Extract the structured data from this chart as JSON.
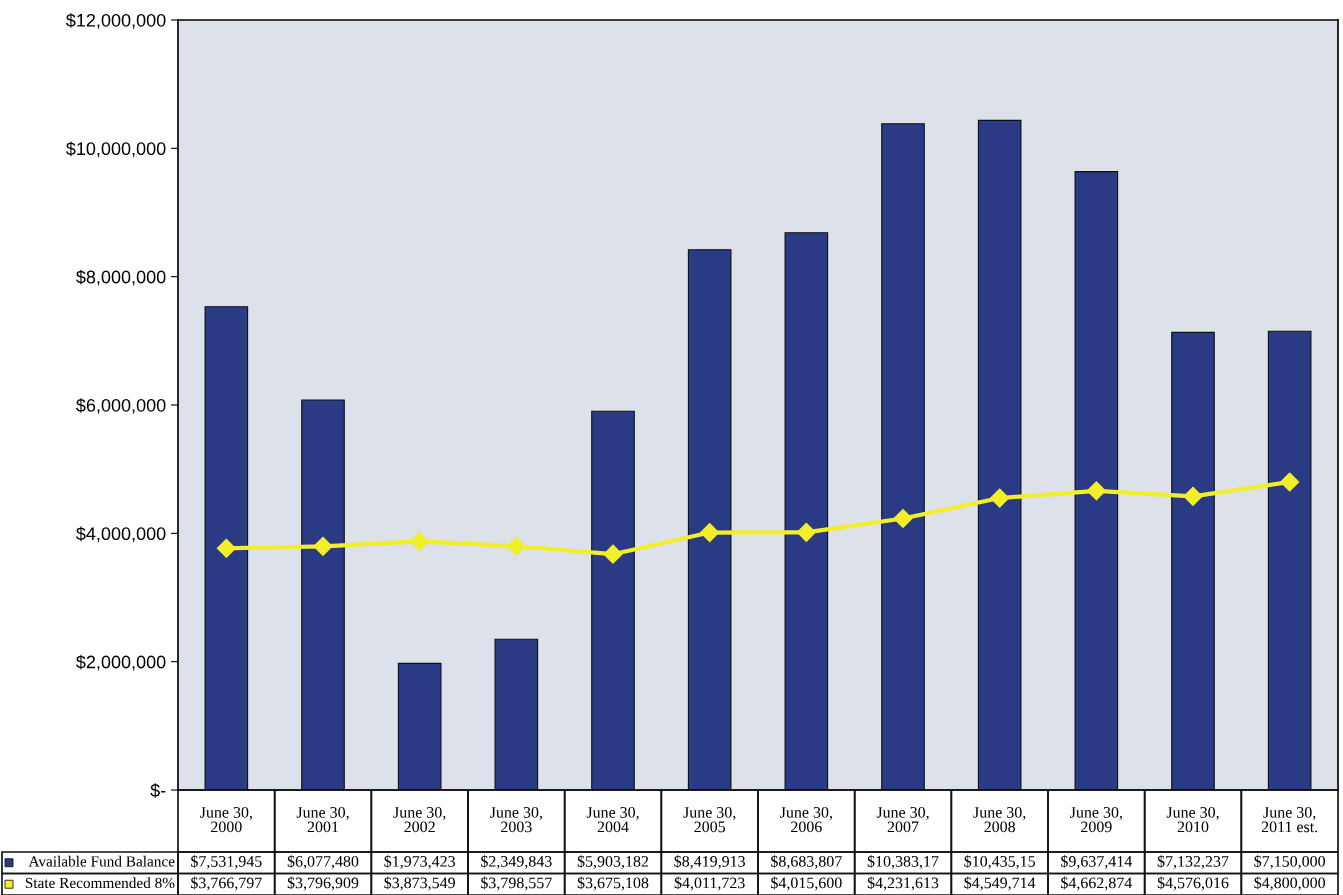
{
  "chart_data": {
    "type": "bar",
    "categories": [
      "June 30,\n2000",
      "June 30,\n2001",
      "June 30,\n2002",
      "June 30,\n2003",
      "June 30,\n2004",
      "June 30,\n2005",
      "June 30,\n2006",
      "June 30,\n2007",
      "June 30,\n2008",
      "June 30,\n2009",
      "June 30,\n2010",
      "June 30,\n2011 est."
    ],
    "series": [
      {
        "name": "Available Fund Balance",
        "color": "#2b3a85",
        "values": [
          7531945,
          6077480,
          1973423,
          2349843,
          5903182,
          8419913,
          8683807,
          10383170,
          10435150,
          9637414,
          7132237,
          7150000
        ],
        "value_labels": [
          "$7,531,945",
          "$6,077,480",
          "$1,973,423",
          "$2,349,843",
          "$5,903,182",
          "$8,419,913",
          "$8,683,807",
          "$10,383,17",
          "$10,435,15",
          "$9,637,414",
          "$7,132,237",
          "$7,150,000"
        ]
      },
      {
        "name": "State Recommended 8%",
        "type": "line",
        "color": "#f2ee2a",
        "marker": "diamond",
        "values": [
          3766797,
          3796909,
          3873549,
          3798557,
          3675108,
          4011723,
          4015600,
          4231613,
          4549714,
          4662874,
          4576016,
          4800000
        ],
        "value_labels": [
          "$3,766,797",
          "$3,796,909",
          "$3,873,549",
          "$3,798,557",
          "$3,675,108",
          "$4,011,723",
          "$4,015,600",
          "$4,231,613",
          "$4,549,714",
          "$4,662,874",
          "$4,576,016",
          "$4,800,000"
        ]
      }
    ],
    "ylim": [
      0,
      12000000
    ],
    "yticks": [
      {
        "value": 0,
        "label": "$-"
      },
      {
        "value": 2000000,
        "label": "$2,000,000"
      },
      {
        "value": 4000000,
        "label": "$4,000,000"
      },
      {
        "value": 6000000,
        "label": "$6,000,000"
      },
      {
        "value": 8000000,
        "label": "$8,000,000"
      },
      {
        "value": 10000000,
        "label": "$10,000,000"
      },
      {
        "value": 12000000,
        "label": "$12,000,000"
      }
    ],
    "grid": false,
    "legend": "bottom left"
  }
}
